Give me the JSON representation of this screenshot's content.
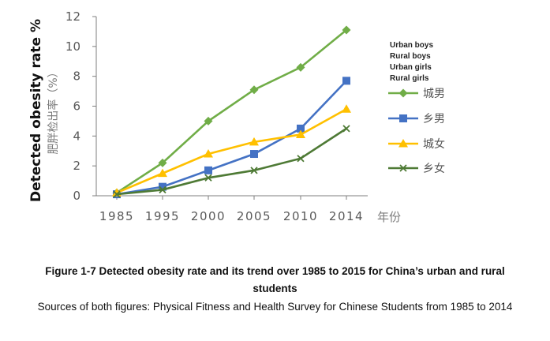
{
  "chart_data": {
    "type": "line",
    "x": [
      "1985",
      "1995",
      "2000",
      "2005",
      "2010",
      "2014"
    ],
    "ylim": [
      0,
      12
    ],
    "yticks": [
      0,
      2,
      4,
      6,
      8,
      10,
      12
    ],
    "ylabel_en": "Detected obesity rate %",
    "ylabel_cn": "肥胖检出率（%）",
    "xunit_cn": "年份",
    "grid": false,
    "legend_position": "right",
    "legend_en": [
      "Urban boys",
      "Rural boys",
      "Urban girls",
      "Rural girls"
    ],
    "series": [
      {
        "name": "城男",
        "color": "#70ad47",
        "marker": "diamond",
        "values": [
          0.2,
          2.2,
          5.0,
          7.1,
          8.6,
          11.1
        ]
      },
      {
        "name": "乡男",
        "color": "#4472c4",
        "marker": "square",
        "values": [
          0.1,
          0.6,
          1.7,
          2.8,
          4.5,
          7.7
        ]
      },
      {
        "name": "城女",
        "color": "#ffc000",
        "marker": "triangle",
        "values": [
          0.2,
          1.5,
          2.8,
          3.6,
          4.1,
          5.8
        ]
      },
      {
        "name": "乡女",
        "color": "#4e7a35",
        "marker": "x",
        "values": [
          0.1,
          0.4,
          1.2,
          1.7,
          2.5,
          4.5
        ]
      }
    ]
  },
  "caption": {
    "title": "Figure 1-7 Detected obesity rate and its trend over 1985 to 2015 for China’s urban and rural students",
    "source": "Sources of both figures: Physical Fitness and Health Survey for Chinese Students from 1985 to 2014"
  }
}
